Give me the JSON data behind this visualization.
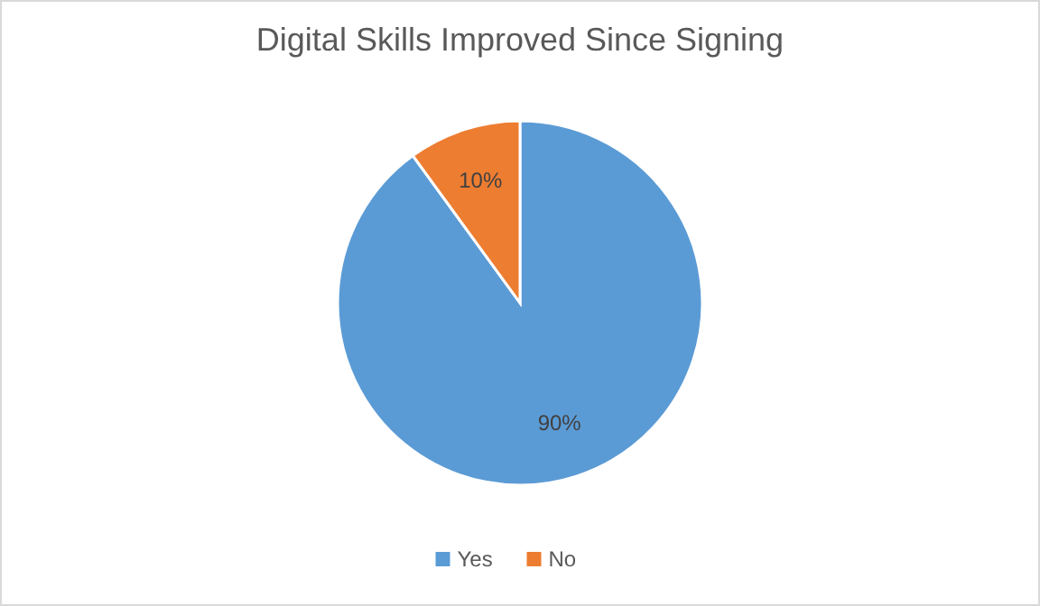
{
  "chart_data": {
    "type": "pie",
    "title": "Digital Skills Improved Since Signing",
    "categories": [
      "Yes",
      "No"
    ],
    "values": [
      90,
      10
    ],
    "colors": [
      "#5b9bd5",
      "#ed7d31"
    ],
    "value_labels": [
      "90%",
      "10%"
    ],
    "legend": "bottom"
  }
}
